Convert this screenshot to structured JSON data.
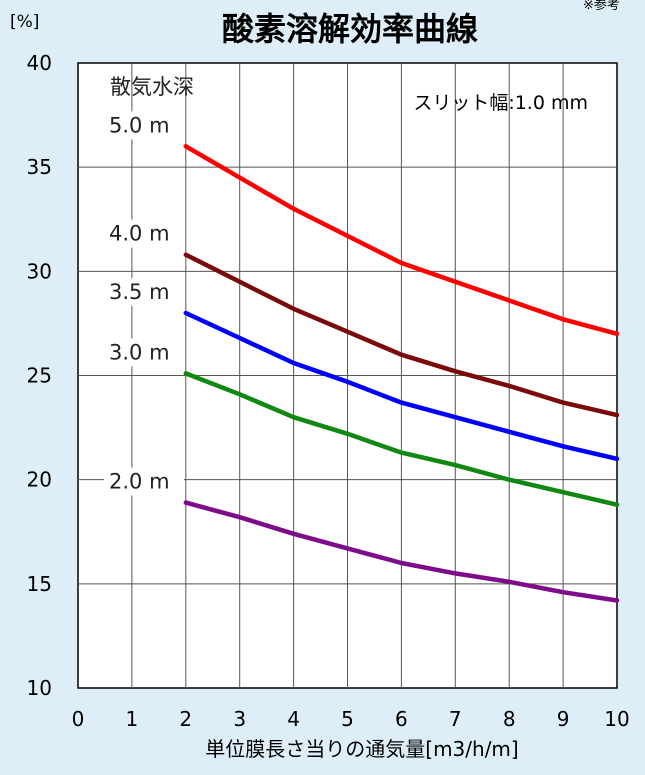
{
  "chart_data": {
    "type": "line",
    "title": "酸素溶解効率曲線",
    "corner_note": "※参考",
    "y_unit": "[%]",
    "xlabel": "単位膜長さ当りの通気量[m3/h/m]",
    "ylabel": "",
    "xlim": [
      0,
      10
    ],
    "ylim": [
      10,
      40
    ],
    "x_ticks": [
      "0",
      "1",
      "2",
      "3",
      "4",
      "5",
      "6",
      "7",
      "8",
      "9",
      "10"
    ],
    "y_ticks": [
      "10",
      "15",
      "20",
      "25",
      "30",
      "35",
      "40"
    ],
    "grid": true,
    "depth_heading": "散気水深",
    "annotation": "スリット幅:1.0 mm",
    "x": [
      2,
      3,
      4,
      5,
      6,
      7,
      8,
      9,
      10
    ],
    "series": [
      {
        "name": "5.0 m",
        "color": "#ff0000",
        "values": [
          36.0,
          34.5,
          33.0,
          31.7,
          30.4,
          29.5,
          28.6,
          27.7,
          27.0
        ]
      },
      {
        "name": "4.0 m",
        "color": "#7b0a0a",
        "values": [
          30.8,
          29.5,
          28.2,
          27.1,
          26.0,
          25.2,
          24.5,
          23.7,
          23.1
        ]
      },
      {
        "name": "3.5 m",
        "color": "#0000ff",
        "values": [
          28.0,
          26.8,
          25.6,
          24.7,
          23.7,
          23.0,
          22.3,
          21.6,
          21.0
        ]
      },
      {
        "name": "3.0 m",
        "color": "#118811",
        "values": [
          25.1,
          24.1,
          23.0,
          22.2,
          21.3,
          20.7,
          20.0,
          19.4,
          18.8
        ]
      },
      {
        "name": "2.0 m",
        "color": "#7d0b8a",
        "values": [
          18.9,
          18.2,
          17.4,
          16.7,
          16.0,
          15.5,
          15.1,
          14.6,
          14.2
        ]
      }
    ]
  }
}
